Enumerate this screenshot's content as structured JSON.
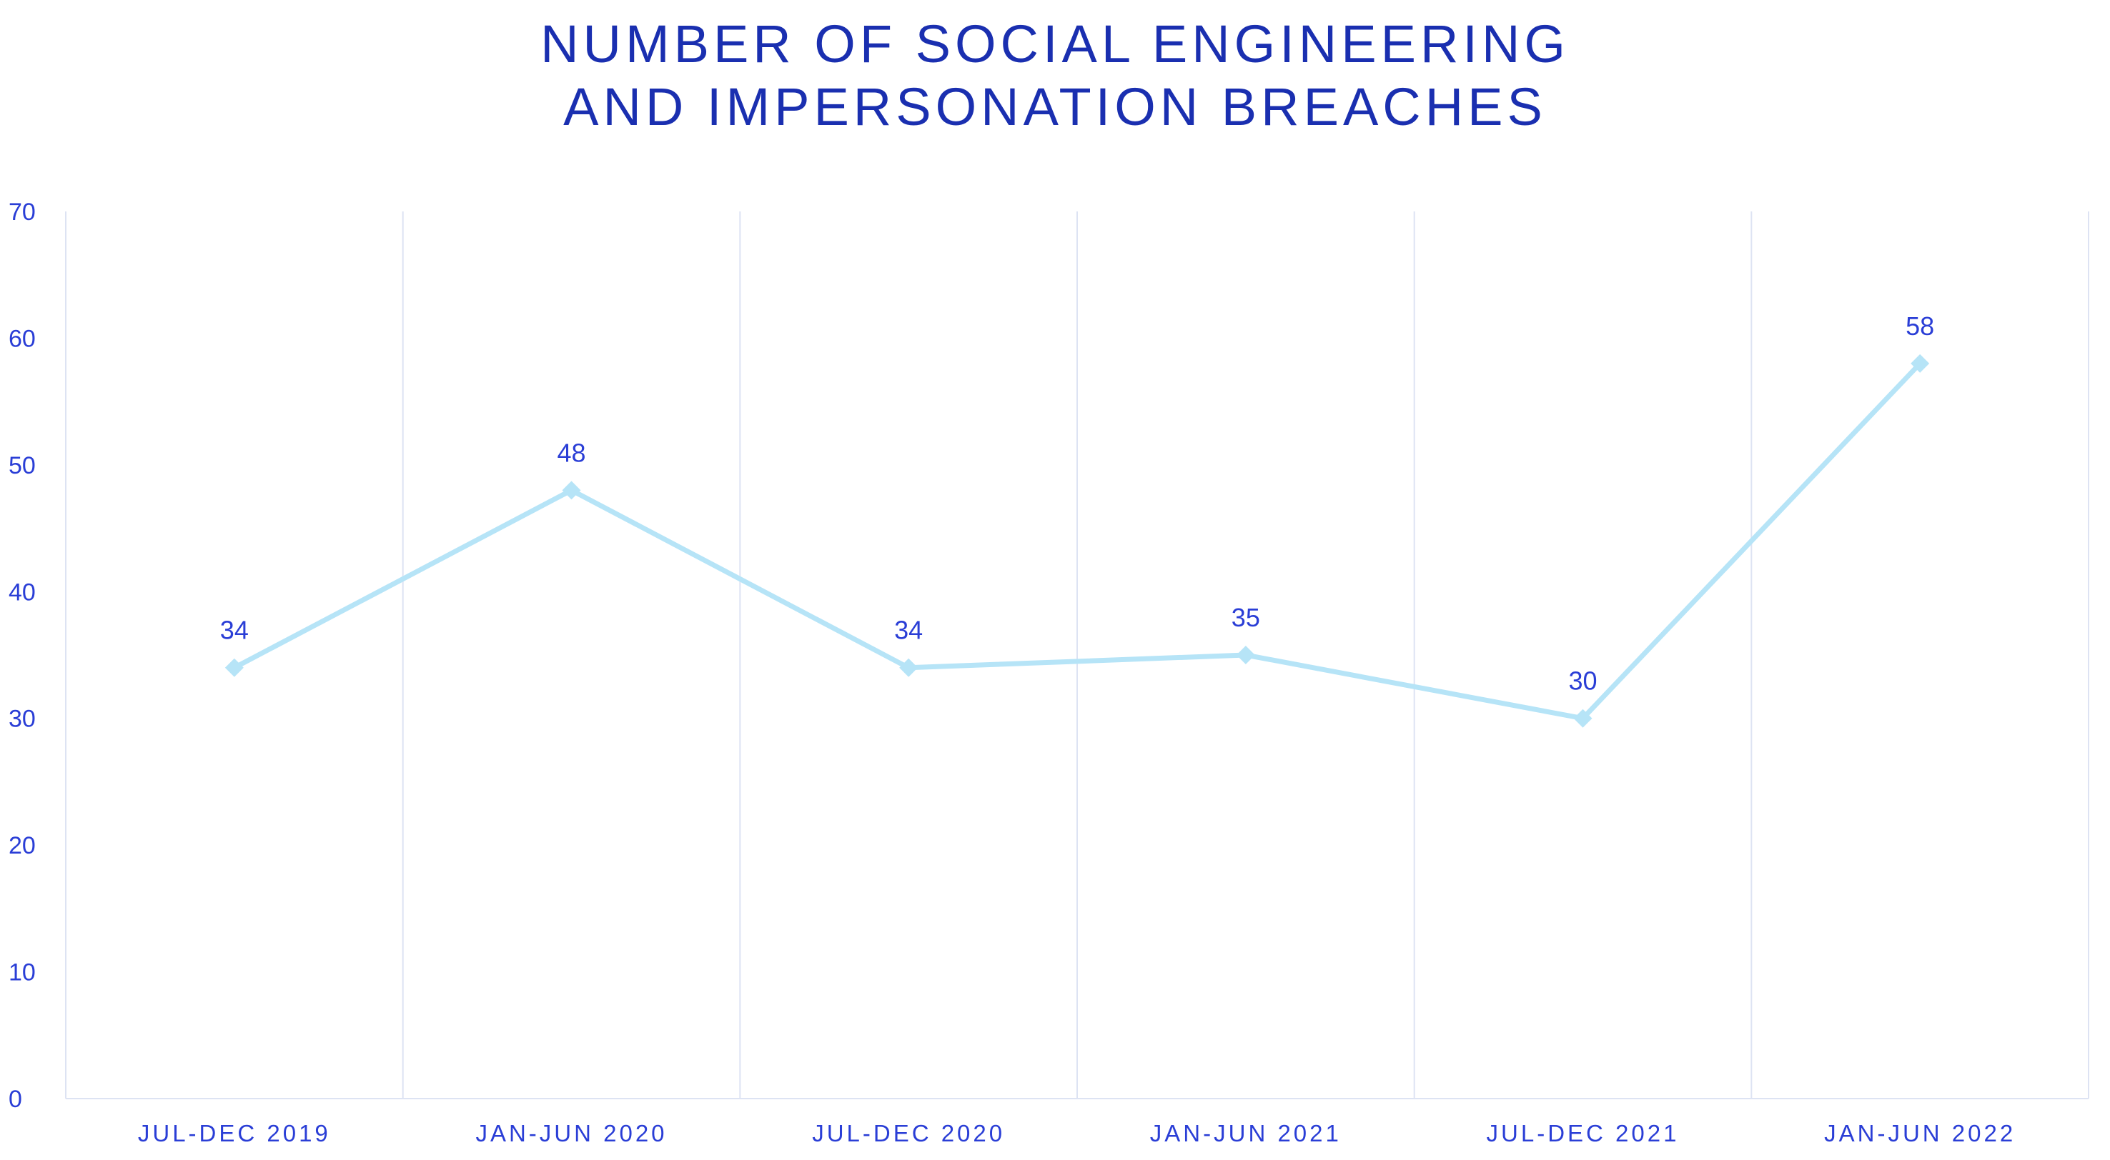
{
  "chart_data": {
    "type": "line",
    "title_lines": [
      "NUMBER OF SOCIAL ENGINEERING",
      "AND IMPERSONATION BREACHES"
    ],
    "categories": [
      "JUL-DEC 2019",
      "JAN-JUN 2020",
      "JUL-DEC 2020",
      "JAN-JUN 2021",
      "JUL-DEC 2021",
      "JAN-JUN 2022"
    ],
    "values": [
      34,
      48,
      34,
      35,
      30,
      58
    ],
    "data_labels": [
      "34",
      "48",
      "34",
      "35",
      "30",
      "58"
    ],
    "yticks": [
      "0",
      "10",
      "20",
      "30",
      "40",
      "50",
      "60",
      "70"
    ],
    "ytick_values": [
      0,
      10,
      20,
      30,
      40,
      50,
      60,
      70
    ],
    "ylim": [
      0,
      70
    ],
    "xlabel": "",
    "ylabel": "",
    "grid": "vertical",
    "legend": "none",
    "colors": {
      "line": "#b6e4f7",
      "text": "#2a3ed6",
      "title": "#1a2fb0",
      "grid": "#dde3f3"
    }
  }
}
